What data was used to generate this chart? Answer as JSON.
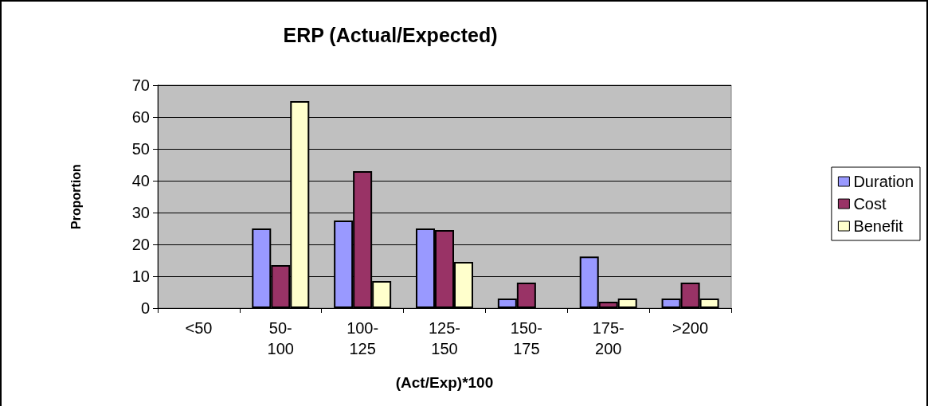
{
  "chart_data": {
    "type": "bar",
    "title": "ERP (Actual/Expected)",
    "xlabel": "(Act/Exp)*100",
    "ylabel": "Proportion",
    "categories": [
      "<50",
      "50-100",
      "100-125",
      "125-150",
      "150-175",
      "175-200",
      ">200"
    ],
    "series": [
      {
        "name": "Duration",
        "color": "#9999ff",
        "values": [
          null,
          25,
          27.5,
          25,
          3,
          16.2,
          3
        ]
      },
      {
        "name": "Cost",
        "color": "#993366",
        "values": [
          null,
          13.5,
          43,
          24.5,
          8,
          2,
          8
        ]
      },
      {
        "name": "Benefit",
        "color": "#ffffcc",
        "values": [
          null,
          65,
          8.5,
          14.5,
          null,
          3,
          3
        ]
      }
    ],
    "ylim": [
      0,
      70
    ],
    "yticks": [
      0,
      10,
      20,
      30,
      40,
      50,
      60,
      70
    ],
    "grid": "y",
    "legend": "right"
  }
}
